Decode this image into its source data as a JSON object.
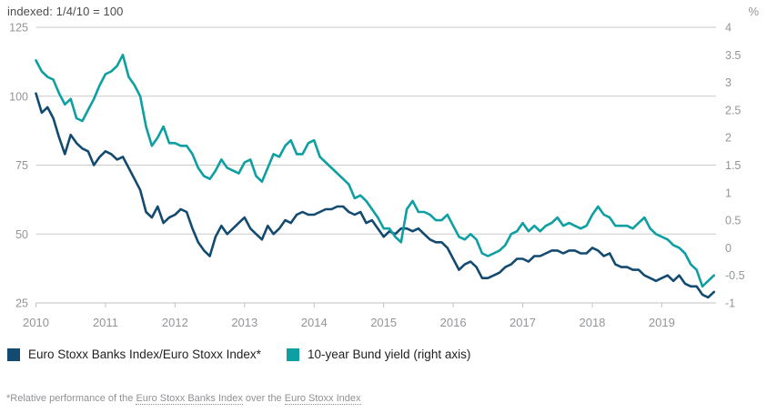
{
  "chart_data": {
    "type": "line",
    "title": "indexed: 1/4/10 = 100",
    "grid": "horizontal",
    "legend_position": "bottom",
    "x_axis": {
      "min": 2010,
      "max": 2019.78,
      "ticks": [
        2010,
        2011,
        2012,
        2013,
        2014,
        2015,
        2016,
        2017,
        2018,
        2019
      ],
      "interval": "monthly",
      "start": "2010-01",
      "end": "2019-10"
    },
    "left_axis": {
      "min": 25,
      "max": 125,
      "tick_values": [
        125,
        100,
        75,
        50,
        25
      ],
      "tick_labels": [
        "125",
        "100",
        "75",
        "50",
        "25"
      ]
    },
    "right_axis": {
      "unit": "%",
      "min": -1,
      "max": 4,
      "tick_values": [
        4,
        3.5,
        3,
        2.5,
        2,
        1.5,
        1,
        0.5,
        0,
        -0.5,
        -1
      ],
      "tick_labels": [
        "4",
        "3.5",
        "3",
        "2.5",
        "2",
        "1.5",
        "1",
        "0.5",
        "0",
        "-0.5",
        "-1"
      ]
    },
    "series": [
      {
        "name": "Euro Stoxx Banks Index/Euro Stoxx Index*",
        "axis": "left",
        "color": "#134b70",
        "values": [
          101,
          94,
          96,
          92,
          85,
          79,
          86,
          83,
          81,
          80,
          75,
          78,
          80,
          79,
          77,
          78,
          74,
          70,
          66,
          58,
          56,
          60,
          54,
          56,
          57,
          59,
          58,
          52,
          47,
          44,
          42,
          49,
          53,
          50,
          52,
          54,
          56,
          52,
          50,
          48,
          53,
          50,
          52,
          55,
          54,
          57,
          58,
          57,
          57,
          58,
          59,
          59,
          60,
          60,
          58,
          57,
          58,
          54,
          55,
          52,
          49,
          51,
          50,
          52,
          52,
          51,
          52,
          50,
          48,
          47,
          47,
          45,
          41,
          37,
          39,
          40,
          38,
          34,
          34,
          35,
          36,
          38,
          39,
          41,
          41,
          40,
          42,
          42,
          43,
          44,
          44,
          43,
          44,
          44,
          43,
          43,
          45,
          44,
          42,
          43,
          39,
          38,
          38,
          37,
          37,
          35,
          34,
          33,
          34,
          35,
          33,
          35,
          32,
          31,
          31,
          28,
          27,
          29
        ]
      },
      {
        "name": "10-year Bund yield (right axis)",
        "axis": "right",
        "color": "#0d9fa1",
        "values": [
          3.4,
          3.2,
          3.1,
          3.05,
          2.8,
          2.6,
          2.7,
          2.35,
          2.3,
          2.5,
          2.7,
          2.95,
          3.15,
          3.2,
          3.3,
          3.5,
          3.1,
          2.95,
          2.75,
          2.2,
          1.85,
          2.0,
          2.2,
          1.9,
          1.9,
          1.85,
          1.85,
          1.7,
          1.45,
          1.3,
          1.25,
          1.4,
          1.6,
          1.45,
          1.4,
          1.35,
          1.55,
          1.6,
          1.3,
          1.2,
          1.45,
          1.7,
          1.65,
          1.85,
          1.95,
          1.7,
          1.7,
          1.9,
          1.95,
          1.65,
          1.55,
          1.45,
          1.35,
          1.25,
          1.15,
          0.9,
          0.95,
          0.85,
          0.7,
          0.55,
          0.35,
          0.35,
          0.2,
          0.1,
          0.7,
          0.85,
          0.65,
          0.65,
          0.6,
          0.5,
          0.5,
          0.6,
          0.4,
          0.2,
          0.15,
          0.25,
          0.15,
          -0.1,
          -0.15,
          -0.1,
          -0.05,
          0.05,
          0.25,
          0.3,
          0.45,
          0.3,
          0.4,
          0.3,
          0.4,
          0.45,
          0.55,
          0.4,
          0.45,
          0.4,
          0.35,
          0.4,
          0.6,
          0.75,
          0.6,
          0.55,
          0.4,
          0.4,
          0.4,
          0.35,
          0.45,
          0.55,
          0.35,
          0.25,
          0.2,
          0.15,
          0.05,
          0.0,
          -0.1,
          -0.3,
          -0.4,
          -0.7,
          -0.6,
          -0.5
        ]
      }
    ]
  },
  "legend": {
    "item1": "Euro Stoxx Banks Index/Euro Stoxx Index*",
    "item2": "10-year Bund yield (right axis)"
  },
  "footnote": {
    "prefix": "*Relative performance of the ",
    "link1": "Euro Stoxx Banks Index",
    "middle": " over the ",
    "link2": "Euro Stoxx Index"
  },
  "colors": {
    "navy": "#134b70",
    "teal": "#0d9fa1",
    "gridline": "#cacaca",
    "axis_text": "#939598"
  }
}
